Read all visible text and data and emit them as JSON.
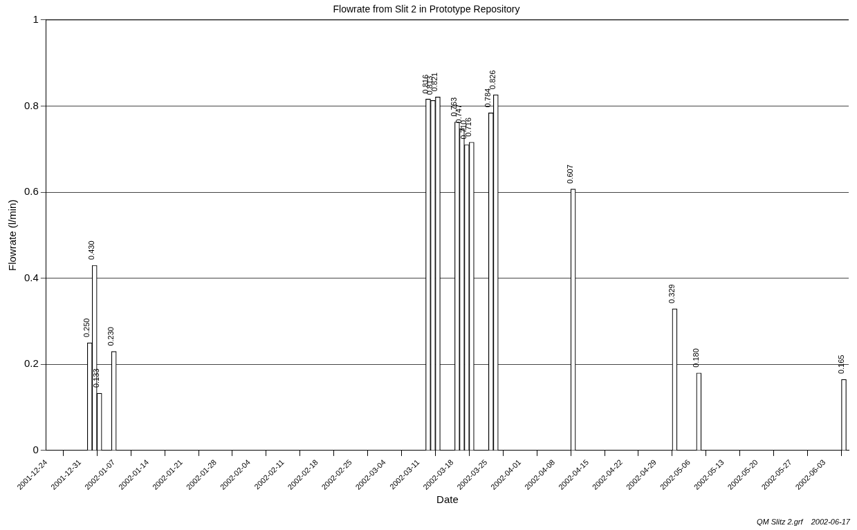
{
  "chart_data": {
    "type": "bar",
    "title": "Flowrate from Slit 2 in Prototype Repository",
    "xlabel": "Date",
    "ylabel": "Flowrate (l/min)",
    "x": [
      "2002-01-02",
      "2002-01-03",
      "2002-01-04",
      "2002-01-07",
      "2002-03-13",
      "2002-03-14",
      "2002-03-15",
      "2002-03-19",
      "2002-03-20",
      "2002-03-21",
      "2002-03-22",
      "2002-03-26",
      "2002-03-27",
      "2002-04-12",
      "2002-05-03",
      "2002-05-08",
      "2002-06-07"
    ],
    "values": [
      0.25,
      0.43,
      0.133,
      0.23,
      0.816,
      0.813,
      0.821,
      0.763,
      0.747,
      0.71,
      0.716,
      0.784,
      0.826,
      0.607,
      0.329,
      0.18,
      0.165
    ],
    "value_labels": [
      "0.250",
      "0.430",
      "0.133",
      "0.230",
      "0.816",
      "0.813",
      "0.821",
      "0.763",
      "0.747",
      "0.710",
      "0.716",
      "0.784",
      "0.826",
      "0.607",
      "0.329",
      "0.180",
      "0.165"
    ],
    "color": "#ffffff",
    "xlim": [
      "2001-12-24",
      "2002-06-08"
    ],
    "xticks": [
      "2001-12-24",
      "2001-12-31",
      "2002-01-07",
      "2002-01-14",
      "2002-01-21",
      "2002-01-28",
      "2002-02-04",
      "2002-02-11",
      "2002-02-18",
      "2002-02-25",
      "2002-03-04",
      "2002-03-11",
      "2002-03-18",
      "2002-03-25",
      "2002-04-01",
      "2002-04-08",
      "2002-04-15",
      "2002-04-22",
      "2002-04-29",
      "2002-05-06",
      "2002-05-13",
      "2002-05-20",
      "2002-05-27",
      "2002-06-03"
    ],
    "ylim": [
      0,
      1
    ],
    "yticks": [
      0,
      0.2,
      0.4,
      0.6,
      0.8,
      1
    ],
    "grid": "y",
    "annotations": [
      "QM Slitz 2.grf    2002-06-17"
    ]
  }
}
